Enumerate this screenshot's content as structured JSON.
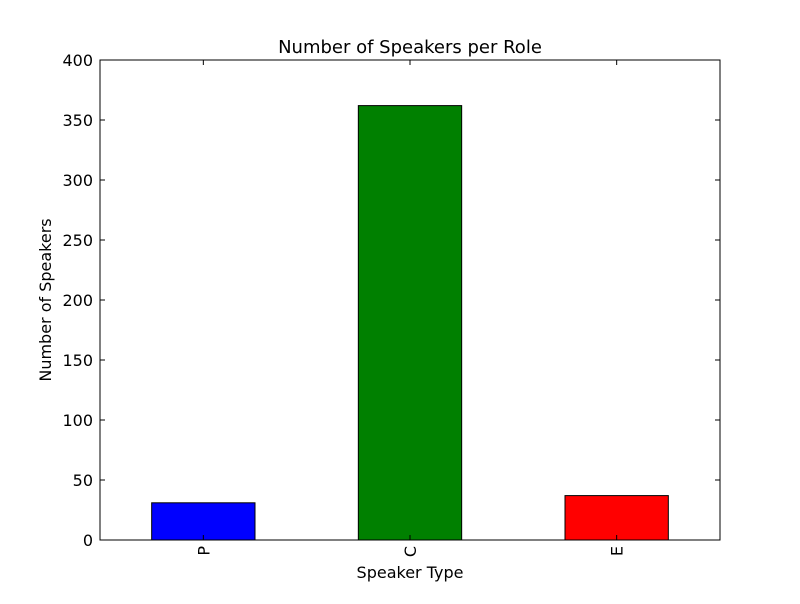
{
  "chart_data": {
    "type": "bar",
    "title": "Number of Speakers per Role",
    "xlabel": "Speaker Type",
    "ylabel": "Number of Speakers",
    "categories": [
      "P",
      "C",
      "E"
    ],
    "values": [
      31,
      362,
      37
    ],
    "colors": [
      "#0000ff",
      "#008000",
      "#ff0000"
    ],
    "ylim": [
      0,
      400
    ],
    "yticks": [
      0,
      50,
      100,
      150,
      200,
      250,
      300,
      350,
      400
    ],
    "grid": false,
    "legend": "none"
  }
}
